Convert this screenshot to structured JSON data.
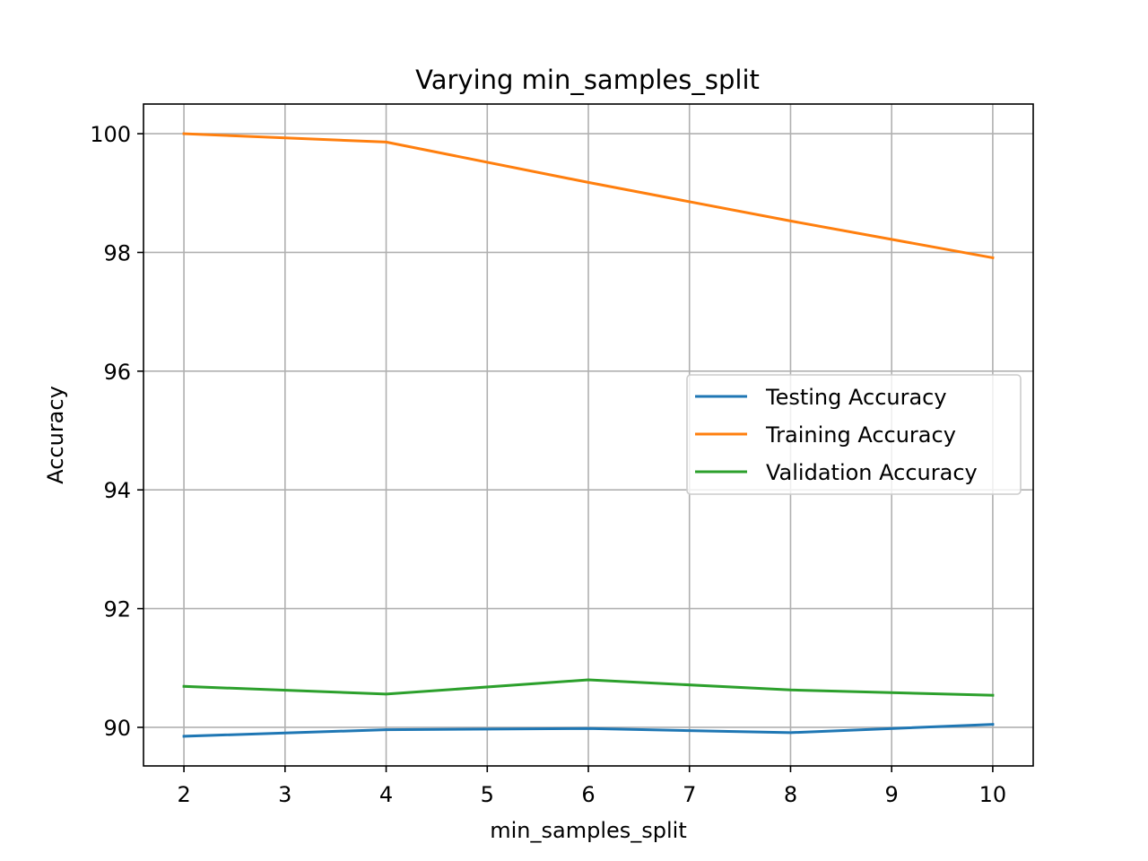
{
  "chart_data": {
    "type": "line",
    "title": "Varying min_samples_split",
    "xlabel": "min_samples_split",
    "ylabel": "Accuracy",
    "xlim": [
      1.6,
      10.4
    ],
    "ylim": [
      89.35,
      100.5
    ],
    "x_ticks": [
      2,
      3,
      4,
      5,
      6,
      7,
      8,
      9,
      10
    ],
    "y_ticks": [
      90,
      92,
      94,
      96,
      98,
      100
    ],
    "grid": true,
    "legend_position": "center-right",
    "x": [
      2,
      4,
      6,
      8,
      10
    ],
    "series": [
      {
        "name": "Testing Accuracy",
        "color": "#1f77b4",
        "values": [
          89.85,
          89.96,
          89.98,
          89.91,
          90.05
        ]
      },
      {
        "name": "Training Accuracy",
        "color": "#ff7f0e",
        "values": [
          100.0,
          99.86,
          99.18,
          98.53,
          97.91
        ]
      },
      {
        "name": "Validation Accuracy",
        "color": "#2ca02c",
        "values": [
          90.69,
          90.56,
          90.8,
          90.63,
          90.54
        ]
      }
    ]
  }
}
